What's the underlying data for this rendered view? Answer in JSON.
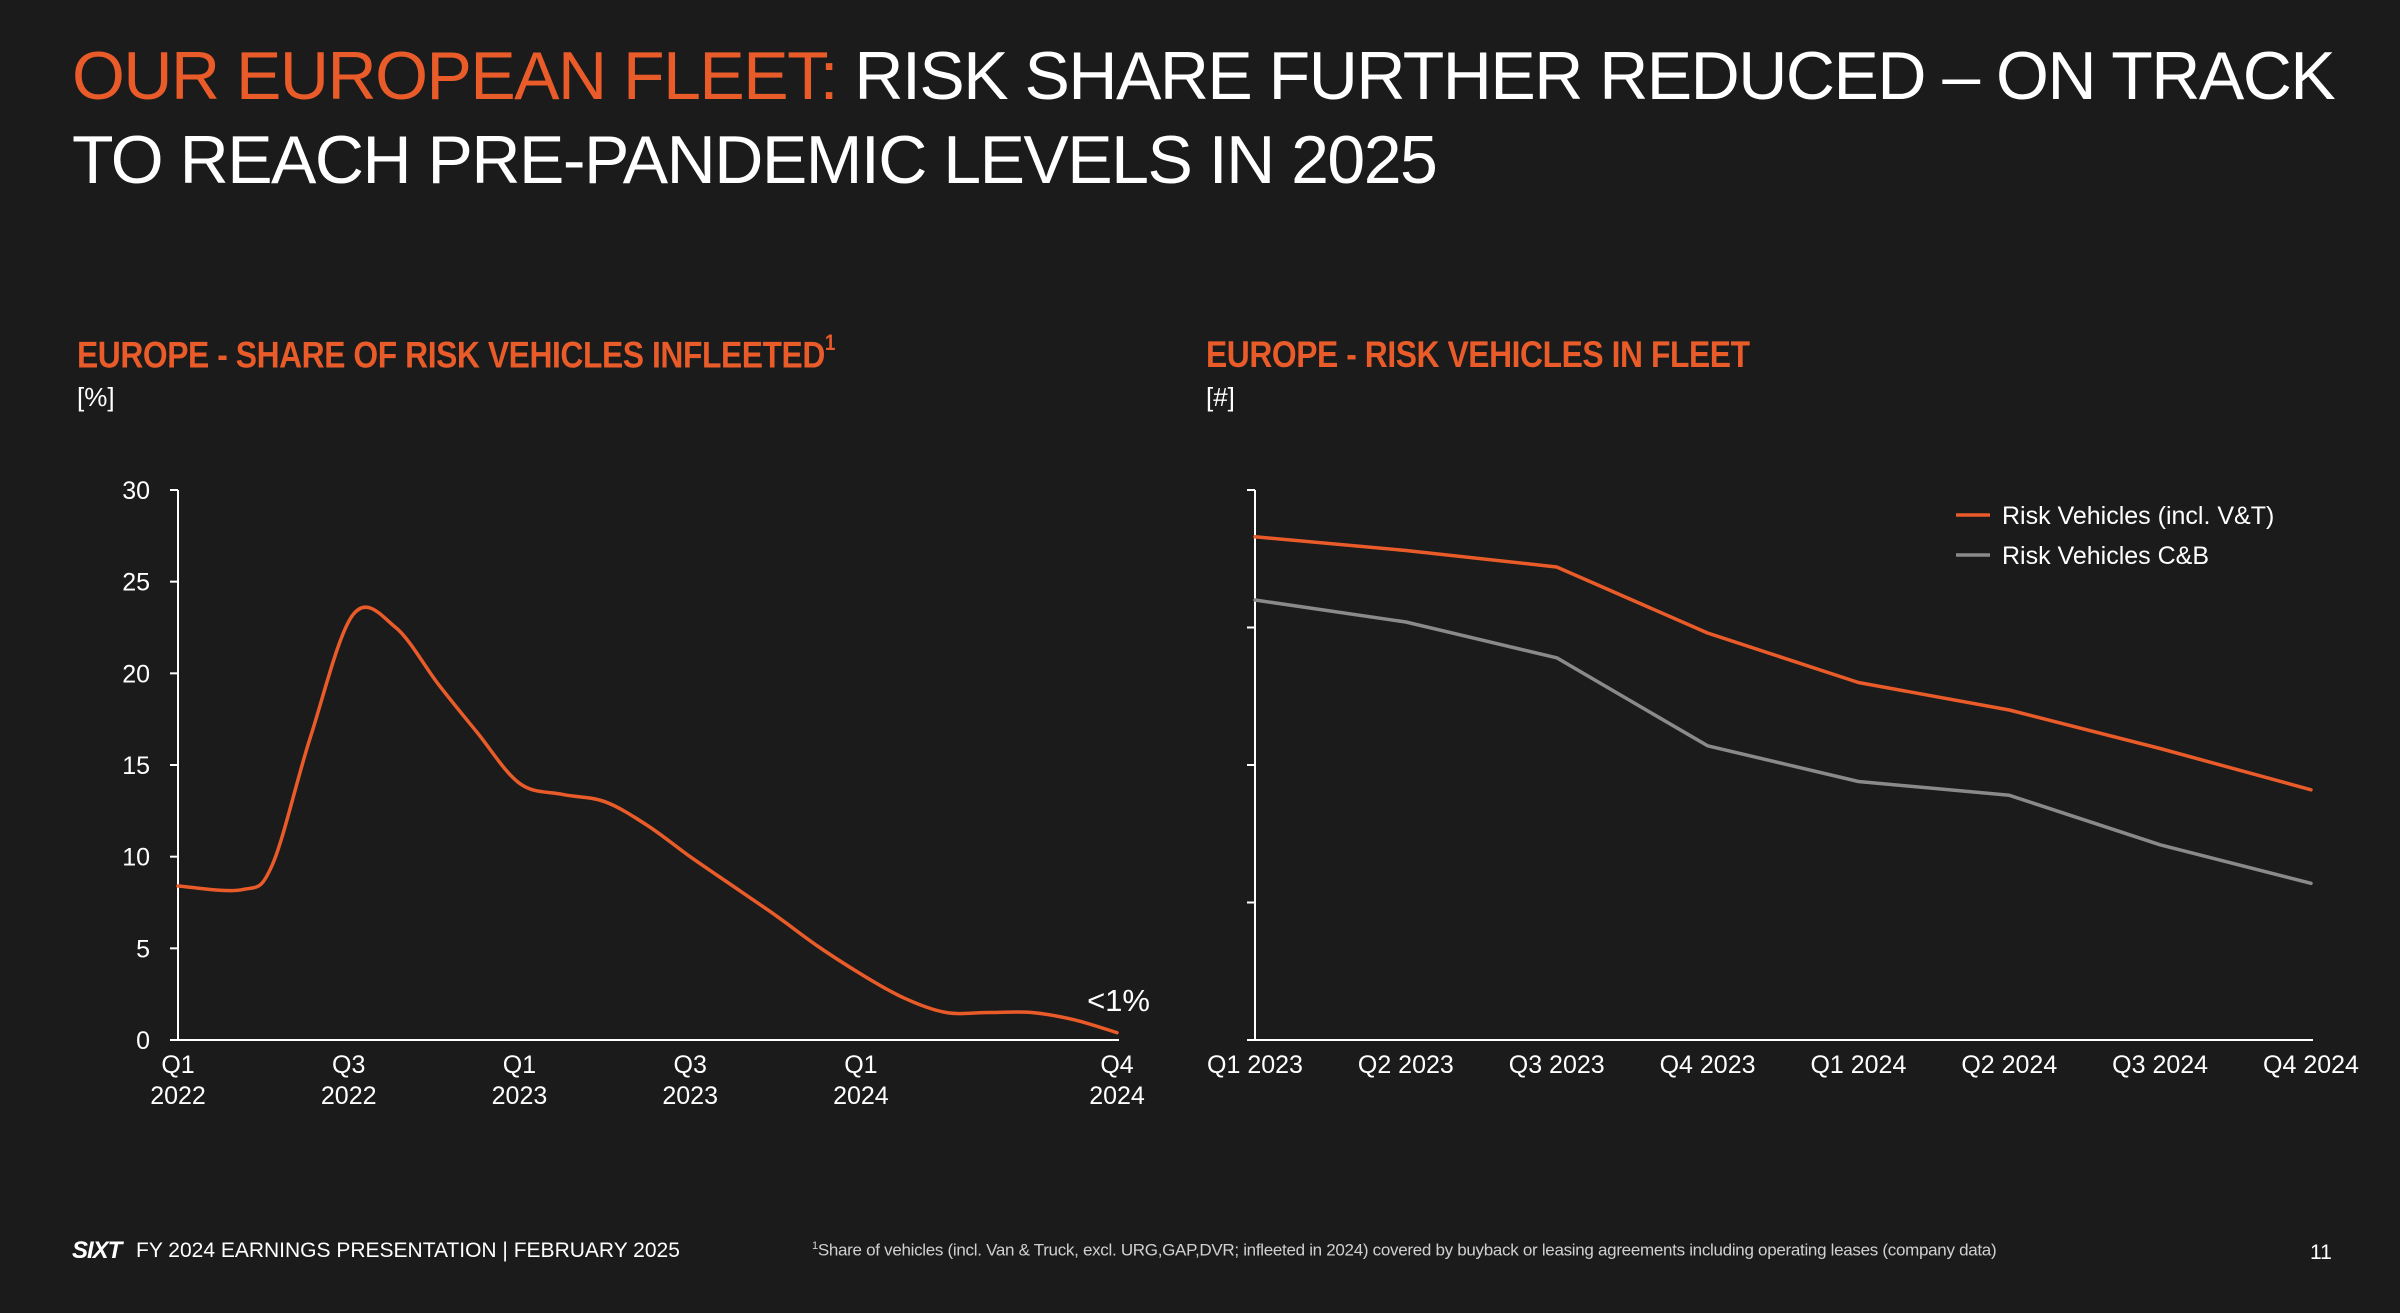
{
  "title": {
    "accent": "OUR EUROPEAN FLEET:",
    "rest": " RISK SHARE FURTHER REDUCED – ON TRACK TO REACH PRE-PANDEMIC LEVELS IN 2025"
  },
  "left_chart": {
    "heading": "EUROPE - SHARE OF RISK VEHICLES INFLEETED",
    "heading_sup": "1",
    "unit": "[%]"
  },
  "right_chart": {
    "heading": "EUROPE - RISK VEHICLES IN FLEET",
    "unit": "[#]"
  },
  "chart_data": [
    {
      "type": "line",
      "title": "EUROPE - SHARE OF RISK VEHICLES INFLEETED",
      "ylabel": "[%]",
      "ylim": [
        0,
        30
      ],
      "yticks": [
        "0",
        "5",
        "10",
        "15",
        "20",
        "25",
        "30"
      ],
      "x_tick_labels": [
        {
          "q": "Q1",
          "y": "2022",
          "t": 0
        },
        {
          "q": "Q3",
          "y": "2022",
          "t": 2
        },
        {
          "q": "Q1",
          "y": "2023",
          "t": 4
        },
        {
          "q": "Q3",
          "y": "2023",
          "t": 6
        },
        {
          "q": "Q1",
          "y": "2024",
          "t": 8
        },
        {
          "q": "Q4",
          "y": "2024",
          "t": 11
        }
      ],
      "x_range": [
        0,
        11
      ],
      "series": [
        {
          "name": "Share of risk vehicles infleeted",
          "color": "#ea5b2a",
          "x": [
            0,
            0.75,
            1.1,
            1.55,
            2.05,
            2.55,
            3.05,
            3.5,
            4.0,
            4.5,
            5.0,
            5.5,
            6.0,
            6.5,
            7.0,
            7.5,
            8.0,
            8.5,
            9.0,
            9.5,
            10.0,
            10.5,
            11.0
          ],
          "values": [
            8.4,
            8.2,
            9.5,
            16.5,
            23.2,
            22.5,
            19.4,
            16.8,
            14.0,
            13.4,
            13.0,
            11.7,
            10.0,
            8.4,
            6.8,
            5.1,
            3.6,
            2.3,
            1.5,
            1.5,
            1.5,
            1.1,
            0.4
          ]
        }
      ],
      "annotation": "<1%"
    },
    {
      "type": "line",
      "title": "EUROPE - RISK VEHICLES IN FLEET",
      "ylabel": "[#]",
      "ylim": [
        0,
        100
      ],
      "categories": [
        "Q1 2023",
        "Q2 2023",
        "Q3 2023",
        "Q4 2023",
        "Q1 2024",
        "Q2 2024",
        "Q3 2024",
        "Q4 2024"
      ],
      "legend_position": "top-right",
      "series": [
        {
          "name": "Risk Vehicles (incl. V&T)",
          "color": "#ea5b2a",
          "values": [
            91.5,
            89.0,
            86.0,
            74.0,
            65.0,
            60.0,
            53.0,
            45.5
          ]
        },
        {
          "name": "Risk Vehicles C&B",
          "color": "#8a8a8a",
          "values": [
            80.0,
            76.0,
            69.5,
            53.5,
            47.0,
            44.5,
            35.5,
            28.5
          ]
        }
      ]
    }
  ],
  "footer": {
    "logo": "SIXT",
    "text": "FY 2024 EARNINGS PRESENTATION | FEBRUARY 2025",
    "footnote_sup": "1",
    "footnote": "Share of vehicles (incl. Van & Truck, excl. URG,GAP,DVR; infleeted in 2024) covered by buyback or leasing agreements including operating leases (company data)",
    "page_number": "11"
  }
}
